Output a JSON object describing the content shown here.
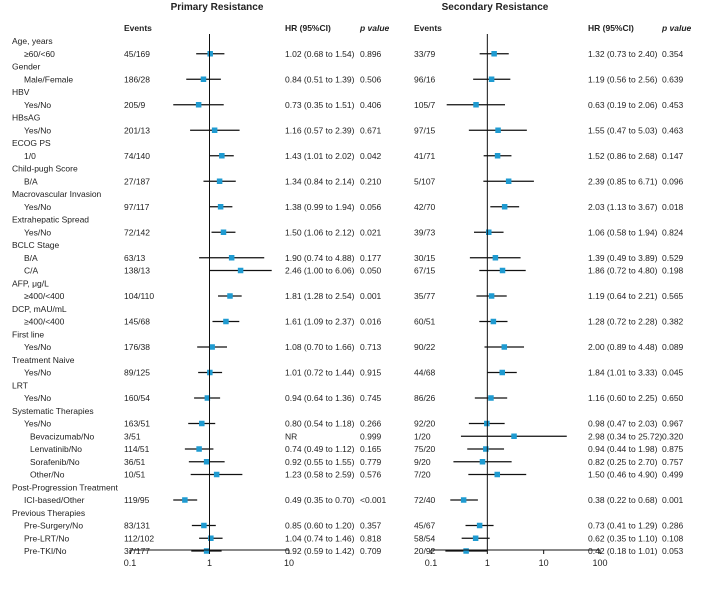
{
  "panels": {
    "primary_title": "Primary Resistance",
    "secondary_title": "Secondary Resistance"
  },
  "headers": {
    "events": "Events",
    "hr": "HR (95%CI)",
    "p_value": "p value",
    "events_secondary": "Events",
    "hr_secondary": "HR (95%CI)",
    "p_value_secondary": "p value"
  },
  "chart_data": {
    "type": "forest",
    "scale": "log",
    "reference_line": 1,
    "axis": {
      "primary_ticks": [
        0.1,
        1,
        10
      ],
      "primary_tick_labels": [
        "0.1",
        "1",
        "10"
      ],
      "primary_range": [
        0.1,
        10
      ],
      "secondary_ticks": [
        0.1,
        1,
        10,
        100
      ],
      "secondary_tick_labels": [
        "0.1",
        "1",
        "10",
        "100"
      ],
      "secondary_range": [
        0.1,
        100
      ]
    },
    "rows": [
      {
        "label": "Age, years",
        "indent": 0,
        "header": true
      },
      {
        "label": "≥60/<60",
        "indent": 1,
        "primary": {
          "events": "45/169",
          "hr": 1.02,
          "lo": 0.68,
          "hi": 1.54,
          "hr_text": "1.02 (0.68 to 1.54)",
          "p": "0.896"
        },
        "secondary": {
          "events": "33/79",
          "hr": 1.32,
          "lo": 0.73,
          "hi": 2.4,
          "hr_text": "1.32 (0.73 to 2.40)",
          "p": "0.354"
        }
      },
      {
        "label": "Gender",
        "indent": 0,
        "header": true
      },
      {
        "label": "Male/Female",
        "indent": 1,
        "primary": {
          "events": "186/28",
          "hr": 0.84,
          "lo": 0.51,
          "hi": 1.39,
          "hr_text": "0.84 (0.51 to 1.39)",
          "p": "0.506"
        },
        "secondary": {
          "events": "96/16",
          "hr": 1.19,
          "lo": 0.56,
          "hi": 2.56,
          "hr_text": "1.19 (0.56 to 2.56)",
          "p": "0.639"
        }
      },
      {
        "label": "HBV",
        "indent": 0,
        "header": true
      },
      {
        "label": "Yes/No",
        "indent": 1,
        "primary": {
          "events": "205/9",
          "hr": 0.73,
          "lo": 0.35,
          "hi": 1.51,
          "hr_text": "0.73 (0.35 to 1.51)",
          "p": "0.406"
        },
        "secondary": {
          "events": "105/7",
          "hr": 0.63,
          "lo": 0.19,
          "hi": 2.06,
          "hr_text": "0.63 (0.19 to 2.06)",
          "p": "0.453"
        }
      },
      {
        "label": "HBsAG",
        "indent": 0,
        "header": true
      },
      {
        "label": "Yes/No",
        "indent": 1,
        "primary": {
          "events": "201/13",
          "hr": 1.16,
          "lo": 0.57,
          "hi": 2.39,
          "hr_text": "1.16 (0.57 to 2.39)",
          "p": "0.671"
        },
        "secondary": {
          "events": "97/15",
          "hr": 1.55,
          "lo": 0.47,
          "hi": 5.03,
          "hr_text": "1.55 (0.47 to 5.03)",
          "p": "0.463"
        }
      },
      {
        "label": "ECOG PS",
        "indent": 0,
        "header": true
      },
      {
        "label": "1/0",
        "indent": 1,
        "primary": {
          "events": "74/140",
          "hr": 1.43,
          "lo": 1.01,
          "hi": 2.02,
          "hr_text": "1.43 (1.01 to 2.02)",
          "p": "0.042"
        },
        "secondary": {
          "events": "41/71",
          "hr": 1.52,
          "lo": 0.86,
          "hi": 2.68,
          "hr_text": "1.52 (0.86 to 2.68)",
          "p": "0.147"
        }
      },
      {
        "label": "Child-pugh Score",
        "indent": 0,
        "header": true
      },
      {
        "label": "B/A",
        "indent": 1,
        "primary": {
          "events": "27/187",
          "hr": 1.34,
          "lo": 0.84,
          "hi": 2.14,
          "hr_text": "1.34 (0.84 to 2.14)",
          "p": "0.210"
        },
        "secondary": {
          "events": "5/107",
          "hr": 2.39,
          "lo": 0.85,
          "hi": 6.71,
          "hr_text": "2.39 (0.85 to 6.71)",
          "p": "0.096"
        }
      },
      {
        "label": "Macrovascular Invasion",
        "indent": 0,
        "header": true
      },
      {
        "label": "Yes/No",
        "indent": 1,
        "primary": {
          "events": "97/117",
          "hr": 1.38,
          "lo": 0.99,
          "hi": 1.94,
          "hr_text": "1.38 (0.99 to 1.94)",
          "p": "0.056"
        },
        "secondary": {
          "events": "42/70",
          "hr": 2.03,
          "lo": 1.13,
          "hi": 3.67,
          "hr_text": "2.03 (1.13 to 3.67)",
          "p": "0.018"
        }
      },
      {
        "label": "Extrahepatic Spread",
        "indent": 0,
        "header": true
      },
      {
        "label": "Yes/No",
        "indent": 1,
        "primary": {
          "events": "72/142",
          "hr": 1.5,
          "lo": 1.06,
          "hi": 2.12,
          "hr_text": "1.50 (1.06 to 2.12)",
          "p": "0.021"
        },
        "secondary": {
          "events": "39/73",
          "hr": 1.06,
          "lo": 0.58,
          "hi": 1.94,
          "hr_text": "1.06 (0.58 to 1.94)",
          "p": "0.824"
        }
      },
      {
        "label": "BCLC Stage",
        "indent": 0,
        "header": true
      },
      {
        "label": "B/A",
        "indent": 1,
        "primary": {
          "events": "63/13",
          "hr": 1.9,
          "lo": 0.74,
          "hi": 4.88,
          "hr_text": "1.90 (0.74 to 4.88)",
          "p": "0.177"
        },
        "secondary": {
          "events": "30/15",
          "hr": 1.39,
          "lo": 0.49,
          "hi": 3.89,
          "hr_text": "1.39 (0.49 to 3.89)",
          "p": "0.529"
        }
      },
      {
        "label": "C/A",
        "indent": 1,
        "primary": {
          "events": "138/13",
          "hr": 2.46,
          "lo": 1.0,
          "hi": 6.06,
          "hr_text": "2.46 (1.00 to 6.06)",
          "p": "0.050"
        },
        "secondary": {
          "events": "67/15",
          "hr": 1.86,
          "lo": 0.72,
          "hi": 4.8,
          "hr_text": "1.86 (0.72 to 4.80)",
          "p": "0.198"
        }
      },
      {
        "label": "AFP, μg/L",
        "indent": 0,
        "header": true
      },
      {
        "label": "≥400/<400",
        "indent": 1,
        "primary": {
          "events": "104/110",
          "hr": 1.81,
          "lo": 1.28,
          "hi": 2.54,
          "hr_text": "1.81 (1.28 to 2.54)",
          "p": "0.001"
        },
        "secondary": {
          "events": "35/77",
          "hr": 1.19,
          "lo": 0.64,
          "hi": 2.21,
          "hr_text": "1.19 (0.64 to 2.21)",
          "p": "0.565"
        }
      },
      {
        "label": "DCP, mAU/mL",
        "indent": 0,
        "header": true
      },
      {
        "label": "≥400/<400",
        "indent": 1,
        "primary": {
          "events": "145/68",
          "hr": 1.61,
          "lo": 1.09,
          "hi": 2.37,
          "hr_text": "1.61 (1.09 to 2.37)",
          "p": "0.016"
        },
        "secondary": {
          "events": "60/51",
          "hr": 1.28,
          "lo": 0.72,
          "hi": 2.28,
          "hr_text": "1.28 (0.72 to 2.28)",
          "p": "0.382"
        }
      },
      {
        "label": "First line",
        "indent": 0,
        "header": true
      },
      {
        "label": "Yes/No",
        "indent": 1,
        "primary": {
          "events": "176/38",
          "hr": 1.08,
          "lo": 0.7,
          "hi": 1.66,
          "hr_text": "1.08 (0.70 to 1.66)",
          "p": "0.713"
        },
        "secondary": {
          "events": "90/22",
          "hr": 2.0,
          "lo": 0.89,
          "hi": 4.48,
          "hr_text": "2.00 (0.89 to 4.48)",
          "p": "0.089"
        }
      },
      {
        "label": "Treatment Naive",
        "indent": 0,
        "header": true
      },
      {
        "label": "Yes/No",
        "indent": 1,
        "primary": {
          "events": "89/125",
          "hr": 1.01,
          "lo": 0.72,
          "hi": 1.44,
          "hr_text": "1.01 (0.72 to 1.44)",
          "p": "0.915"
        },
        "secondary": {
          "events": "44/68",
          "hr": 1.84,
          "lo": 1.01,
          "hi": 3.33,
          "hr_text": "1.84 (1.01 to 3.33)",
          "p": "0.045"
        }
      },
      {
        "label": "LRT",
        "indent": 0,
        "header": true
      },
      {
        "label": "Yes/No",
        "indent": 1,
        "primary": {
          "events": "160/54",
          "hr": 0.94,
          "lo": 0.64,
          "hi": 1.36,
          "hr_text": "0.94 (0.64 to 1.36)",
          "p": "0.745"
        },
        "secondary": {
          "events": "86/26",
          "hr": 1.16,
          "lo": 0.6,
          "hi": 2.25,
          "hr_text": "1.16 (0.60 to 2.25)",
          "p": "0.650"
        }
      },
      {
        "label": "Systematic Therapies",
        "indent": 0,
        "header": true
      },
      {
        "label": "Yes/No",
        "indent": 1,
        "primary": {
          "events": "163/51",
          "hr": 0.8,
          "lo": 0.54,
          "hi": 1.18,
          "hr_text": "0.80 (0.54 to 1.18)",
          "p": "0.266"
        },
        "secondary": {
          "events": "92/20",
          "hr": 0.98,
          "lo": 0.47,
          "hi": 2.03,
          "hr_text": "0.98 (0.47 to 2.03)",
          "p": "0.967"
        }
      },
      {
        "label": "Bevacizumab/No",
        "indent": 2,
        "primary": {
          "events": "3/51",
          "hr": null,
          "lo": null,
          "hi": null,
          "hr_text": "NR",
          "p": "0.999"
        },
        "secondary": {
          "events": "1/20",
          "hr": 2.98,
          "lo": 0.34,
          "hi": 25.72,
          "hr_text": "2.98 (0.34 to 25.72)",
          "p": "0.320"
        }
      },
      {
        "label": "Lenvatinib/No",
        "indent": 2,
        "primary": {
          "events": "114/51",
          "hr": 0.74,
          "lo": 0.49,
          "hi": 1.12,
          "hr_text": "0.74 (0.49 to 1.12)",
          "p": "0.165"
        },
        "secondary": {
          "events": "75/20",
          "hr": 0.94,
          "lo": 0.44,
          "hi": 1.98,
          "hr_text": "0.94 (0.44 to 1.98)",
          "p": "0.875"
        }
      },
      {
        "label": "Sorafenib/No",
        "indent": 2,
        "primary": {
          "events": "36/51",
          "hr": 0.92,
          "lo": 0.55,
          "hi": 1.55,
          "hr_text": "0.92 (0.55 to 1.55)",
          "p": "0.779"
        },
        "secondary": {
          "events": "9/20",
          "hr": 0.82,
          "lo": 0.25,
          "hi": 2.7,
          "hr_text": "0.82 (0.25 to 2.70)",
          "p": "0.757"
        }
      },
      {
        "label": "Other/No",
        "indent": 2,
        "primary": {
          "events": "10/51",
          "hr": 1.23,
          "lo": 0.58,
          "hi": 2.59,
          "hr_text": "1.23 (0.58 to 2.59)",
          "p": "0.576"
        },
        "secondary": {
          "events": "7/20",
          "hr": 1.5,
          "lo": 0.46,
          "hi": 4.9,
          "hr_text": "1.50 (0.46 to 4.90)",
          "p": "0.499"
        }
      },
      {
        "label": "Post-Progression Treatment",
        "indent": 0,
        "header": true
      },
      {
        "label": "ICI-based/Other",
        "indent": 1,
        "primary": {
          "events": "119/95",
          "hr": 0.49,
          "lo": 0.35,
          "hi": 0.7,
          "hr_text": "0.49 (0.35 to 0.70)",
          "p": "<0.001"
        },
        "secondary": {
          "events": "72/40",
          "hr": 0.38,
          "lo": 0.22,
          "hi": 0.68,
          "hr_text": "0.38 (0.22 to 0.68)",
          "p": "0.001"
        }
      },
      {
        "label": "Previous Therapies",
        "indent": 0,
        "header": true
      },
      {
        "label": "Pre-Surgery/No",
        "indent": 1,
        "primary": {
          "events": "83/131",
          "hr": 0.85,
          "lo": 0.6,
          "hi": 1.2,
          "hr_text": "0.85 (0.60 to 1.20)",
          "p": "0.357"
        },
        "secondary": {
          "events": "45/67",
          "hr": 0.73,
          "lo": 0.41,
          "hi": 1.29,
          "hr_text": "0.73 (0.41 to 1.29)",
          "p": "0.286"
        }
      },
      {
        "label": "Pre-LRT/No",
        "indent": 1,
        "primary": {
          "events": "112/102",
          "hr": 1.04,
          "lo": 0.74,
          "hi": 1.46,
          "hr_text": "1.04 (0.74 to 1.46)",
          "p": "0.818"
        },
        "secondary": {
          "events": "58/54",
          "hr": 0.62,
          "lo": 0.35,
          "hi": 1.1,
          "hr_text": "0.62 (0.35 to 1.10)",
          "p": "0.108"
        }
      },
      {
        "label": "Pre-TKI/No",
        "indent": 1,
        "primary": {
          "events": "37/177",
          "hr": 0.92,
          "lo": 0.59,
          "hi": 1.42,
          "hr_text": "0.92 (0.59 to 1.42)",
          "p": "0.709"
        },
        "secondary": {
          "events": "20/92",
          "hr": 0.42,
          "lo": 0.18,
          "hi": 1.01,
          "hr_text": "0.42 (0.18 to 1.01)",
          "p": "0.053"
        }
      }
    ]
  },
  "colors": {
    "marker": "#1f9bd1",
    "line": "#111111",
    "text": "#222222"
  }
}
